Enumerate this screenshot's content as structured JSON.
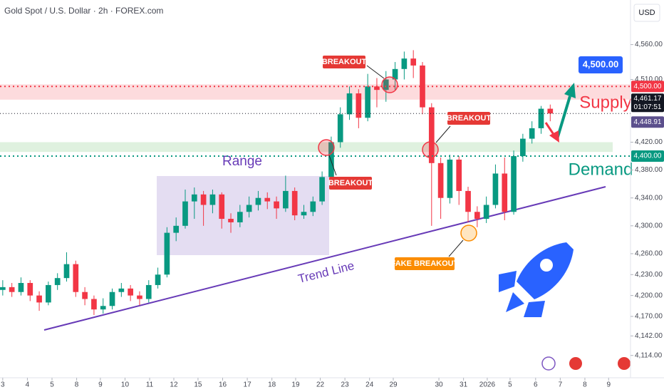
{
  "chart_data": {
    "type": "candlestick",
    "title": "Gold Spot / U.S. Dollar · 2h · FOREX.com",
    "currency": "USD",
    "up_color": "#089981",
    "down_color": "#f23645",
    "open": [
      4208,
      4212,
      4205,
      4218,
      4200,
      4190,
      4215,
      4225,
      4245,
      4205,
      4195,
      4180,
      4185,
      4205,
      4210,
      4200,
      4195,
      4215,
      4230,
      4290,
      4300,
      4335,
      4345,
      4330,
      4345,
      4310,
      4305,
      4320,
      4330,
      4340,
      4335,
      4325,
      4350,
      4315,
      4320,
      4335,
      4370,
      4420,
      4460,
      4490,
      4455,
      4500,
      4495,
      4510,
      4525,
      4540,
      4530,
      4470,
      4390,
      4340,
      4395,
      4350,
      4320,
      4310,
      4330,
      4375,
      4320,
      4400,
      4425,
      4440,
      4468
    ],
    "high": [
      4222,
      4218,
      4226,
      4222,
      4206,
      4220,
      4232,
      4262,
      4250,
      4212,
      4200,
      4196,
      4210,
      4218,
      4215,
      4206,
      4222,
      4240,
      4298,
      4312,
      4352,
      4355,
      4350,
      4352,
      4348,
      4318,
      4330,
      4342,
      4350,
      4348,
      4342,
      4372,
      4355,
      4330,
      4342,
      4378,
      4428,
      4470,
      4500,
      4496,
      4518,
      4512,
      4522,
      4535,
      4550,
      4552,
      4535,
      4476,
      4398,
      4402,
      4400,
      4356,
      4328,
      4342,
      4388,
      4398,
      4408,
      4432,
      4450,
      4472,
      4474
    ],
    "low": [
      4200,
      4198,
      4200,
      4192,
      4178,
      4186,
      4208,
      4220,
      4198,
      4186,
      4172,
      4174,
      4180,
      4198,
      4192,
      4186,
      4190,
      4210,
      4226,
      4278,
      4296,
      4310,
      4300,
      4318,
      4296,
      4290,
      4298,
      4312,
      4322,
      4324,
      4310,
      4320,
      4308,
      4310,
      4314,
      4330,
      4362,
      4412,
      4452,
      4440,
      4450,
      4470,
      4478,
      4495,
      4510,
      4512,
      4460,
      4300,
      4310,
      4332,
      4330,
      4305,
      4298,
      4304,
      4325,
      4308,
      4316,
      4392,
      4418,
      4432,
      4450
    ],
    "close": [
      4212,
      4205,
      4218,
      4200,
      4190,
      4215,
      4225,
      4245,
      4205,
      4195,
      4180,
      4185,
      4205,
      4210,
      4200,
      4195,
      4215,
      4230,
      4290,
      4300,
      4335,
      4345,
      4330,
      4345,
      4310,
      4305,
      4320,
      4330,
      4340,
      4335,
      4325,
      4350,
      4315,
      4320,
      4335,
      4370,
      4420,
      4460,
      4490,
      4455,
      4500,
      4495,
      4510,
      4525,
      4540,
      4530,
      4470,
      4390,
      4340,
      4395,
      4350,
      4320,
      4310,
      4330,
      4375,
      4320,
      4400,
      4425,
      4440,
      4468,
      4461.17
    ],
    "xlim": [
      -0.3,
      68.8
    ],
    "xticks": [
      {
        "value": 0,
        "label": "3"
      },
      {
        "value": 2.7,
        "label": "4"
      },
      {
        "value": 5.4,
        "label": "5"
      },
      {
        "value": 8.1,
        "label": "8"
      },
      {
        "value": 10.7,
        "label": "9"
      },
      {
        "value": 13.4,
        "label": "10"
      },
      {
        "value": 16.1,
        "label": "11"
      },
      {
        "value": 18.75,
        "label": "12"
      },
      {
        "value": 21.4,
        "label": "15"
      },
      {
        "value": 24.1,
        "label": "16"
      },
      {
        "value": 26.8,
        "label": "17"
      },
      {
        "value": 29.5,
        "label": "18"
      },
      {
        "value": 32.1,
        "label": "19"
      },
      {
        "value": 34.8,
        "label": "22"
      },
      {
        "value": 37.5,
        "label": "23"
      },
      {
        "value": 40.2,
        "label": "24"
      },
      {
        "value": 42.8,
        "label": "29"
      },
      {
        "value": 47.8,
        "label": "30"
      },
      {
        "value": 50.5,
        "label": "31"
      },
      {
        "value": 53.1,
        "label": "2026"
      },
      {
        "value": 55.6,
        "label": "5"
      },
      {
        "value": 58.4,
        "label": "6"
      },
      {
        "value": 61.1,
        "label": "7"
      },
      {
        "value": 63.8,
        "label": "8"
      },
      {
        "value": 66.4,
        "label": "9"
      }
    ],
    "ylim": [
      4082,
      4624
    ],
    "yticks": [
      {
        "value": 4114,
        "label": "4,114.00"
      },
      {
        "value": 4142,
        "label": "4,142.00"
      },
      {
        "value": 4170,
        "label": "4,170.00"
      },
      {
        "value": 4200,
        "label": "4,200.00"
      },
      {
        "value": 4230,
        "label": "4,230.00"
      },
      {
        "value": 4260,
        "label": "4,260.00"
      },
      {
        "value": 4300,
        "label": "4,300.00"
      },
      {
        "value": 4340,
        "label": "4,340.00"
      },
      {
        "value": 4380,
        "label": "4,380.00"
      },
      {
        "value": 4420,
        "label": "4,420.00"
      },
      {
        "value": 4510,
        "label": "4,510.00"
      },
      {
        "value": 4560,
        "label": "4,560.00"
      }
    ],
    "zones": [
      {
        "name": "Supply",
        "from": 4481,
        "to": 4503,
        "color": "#f23645"
      },
      {
        "name": "Demand",
        "from": 4406,
        "to": 4420,
        "color": "#4caf50"
      }
    ],
    "price_lines": [
      {
        "value": 4500,
        "label": "4,500.00",
        "color": "#f23645"
      },
      {
        "value": 4400,
        "label": "4,400.00",
        "color": "#089981"
      }
    ],
    "last_price": {
      "value": 4461.17,
      "label": "4,461.17",
      "countdown": "01:07:51"
    },
    "marker_price": {
      "value": 4448.91,
      "label": "4,448.91"
    },
    "annotations": {
      "range": "Range",
      "trend_line": "Trend Line",
      "breakouts": [
        "BREAKOUT",
        "BREAKOUT",
        "BREAKOUT"
      ],
      "fake_breakout": "FAKE BREAKOUT",
      "target": "4,500.00"
    }
  }
}
